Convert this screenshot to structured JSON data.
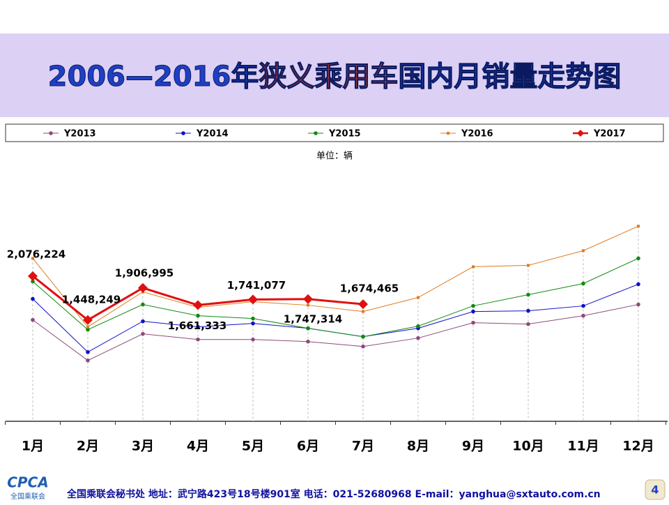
{
  "chart_data": {
    "type": "line",
    "title": [
      {
        "text": "2006—2016年",
        "color": "#1f3fc4"
      },
      {
        "text": "狭义乘用车",
        "color": "#c0392b"
      },
      {
        "text": "国内月销量走势图",
        "color": "#1f3fc4"
      }
    ],
    "subtitle": "单位：辆",
    "categories": [
      "1月",
      "2月",
      "3月",
      "4月",
      "5月",
      "6月",
      "7月",
      "8月",
      "9月",
      "10月",
      "11月",
      "12月"
    ],
    "ylim": [
      0,
      3800000
    ],
    "series": [
      {
        "name": "Y2013",
        "color": "#8e4a7a",
        "marker": "circle",
        "values": [
          1450000,
          870000,
          1250000,
          1170000,
          1170000,
          1140000,
          1070000,
          1190000,
          1410000,
          1390000,
          1510000,
          1670000
        ]
      },
      {
        "name": "Y2014",
        "color": "#1010c8",
        "marker": "circle",
        "values": [
          1750000,
          990000,
          1430000,
          1350000,
          1400000,
          1330000,
          1210000,
          1330000,
          1570000,
          1580000,
          1650000,
          1960000
        ]
      },
      {
        "name": "Y2015",
        "color": "#108a10",
        "marker": "circle",
        "values": [
          2000000,
          1310000,
          1670000,
          1510000,
          1470000,
          1330000,
          1210000,
          1360000,
          1650000,
          1810000,
          1970000,
          2330000
        ]
      },
      {
        "name": "Y2016",
        "color": "#e07b20",
        "marker": "square",
        "values": [
          2330000,
          1350000,
          1850000,
          1630000,
          1710000,
          1660000,
          1570000,
          1770000,
          2210000,
          2230000,
          2440000,
          2790000
        ]
      },
      {
        "name": "Y2017",
        "color": "#e01010",
        "marker": "diamond",
        "values": [
          2076224,
          1448249,
          1906995,
          1661333,
          1741077,
          1747314,
          1674465,
          null,
          null,
          null,
          null,
          null
        ],
        "value_labels": [
          "2,076,224",
          "1,448,249",
          "1,906,995",
          "1,661,333",
          "1,741,077",
          "1,747,314",
          "1,674,465",
          null,
          null,
          null,
          null,
          null
        ]
      }
    ]
  },
  "footer": {
    "logo": "CPCA",
    "logo_sub": "全国乘联会",
    "text": "全国乘联会秘书处  地址：武宁路423号18号楼901室    电话：021-52680968   E-mail：yanghua@sxtauto.com.cn",
    "page": "4"
  }
}
